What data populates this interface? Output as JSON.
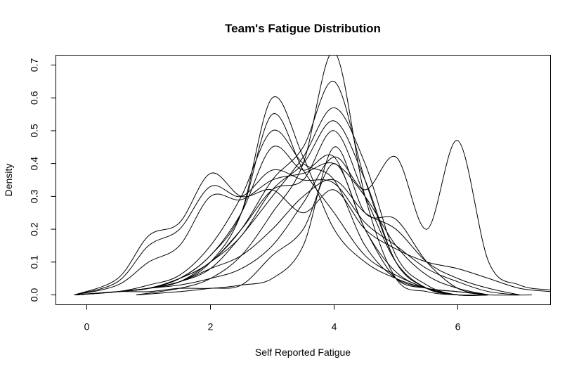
{
  "chart_data": {
    "type": "line",
    "title": "Team's Fatigue Distribution",
    "xlabel": "Self Reported Fatigue",
    "ylabel": "Density",
    "xlim": [
      -0.5,
      7.5
    ],
    "ylim": [
      -0.03,
      0.73
    ],
    "x_ticks": [
      0,
      2,
      4,
      6
    ],
    "x_tick_labels": [
      "0",
      "2",
      "4",
      "6"
    ],
    "y_ticks": [
      0.0,
      0.1,
      0.2,
      0.3,
      0.4,
      0.5,
      0.6,
      0.7
    ],
    "y_tick_labels": [
      "0.0",
      "0.1",
      "0.2",
      "0.3",
      "0.4",
      "0.5",
      "0.6",
      "0.7"
    ],
    "grid": false,
    "legend": "none",
    "line_color": "#000000",
    "series": [
      {
        "x": [
          -0.2,
          0.5,
          1,
          1.5,
          2,
          2.5,
          3,
          3.5,
          4,
          4.5,
          5,
          5.5,
          6,
          6.5,
          7,
          7.5
        ],
        "y": [
          0.0,
          0.01,
          0.02,
          0.03,
          0.05,
          0.08,
          0.15,
          0.28,
          0.42,
          0.32,
          0.42,
          0.2,
          0.47,
          0.1,
          0.03,
          0.015
        ]
      },
      {
        "x": [
          -0.2,
          0.5,
          1,
          1.5,
          2,
          2.5,
          3,
          3.5,
          4,
          4.5,
          5,
          5.5,
          6,
          6.5,
          7,
          7.5
        ],
        "y": [
          0.0,
          0.05,
          0.18,
          0.22,
          0.37,
          0.3,
          0.32,
          0.25,
          0.32,
          0.2,
          0.14,
          0.1,
          0.08,
          0.05,
          0.02,
          0.01
        ]
      },
      {
        "x": [
          -0.2,
          0.5,
          1,
          1.5,
          2,
          2.5,
          3,
          3.5,
          4,
          4.5,
          5,
          5.5,
          6,
          6.5,
          7
        ],
        "y": [
          0.0,
          0.04,
          0.15,
          0.2,
          0.33,
          0.3,
          0.38,
          0.35,
          0.34,
          0.22,
          0.15,
          0.08,
          0.04,
          0.01,
          0.0
        ]
      },
      {
        "x": [
          -0.2,
          0.5,
          1,
          1.5,
          2,
          2.5,
          3,
          3.5,
          4,
          4.5,
          5,
          5.5,
          6,
          6.5
        ],
        "y": [
          0.0,
          0.03,
          0.1,
          0.15,
          0.3,
          0.29,
          0.35,
          0.37,
          0.4,
          0.3,
          0.15,
          0.06,
          0.02,
          0.0
        ]
      },
      {
        "x": [
          -0.2,
          0.5,
          1,
          1.5,
          2,
          2.5,
          3,
          3.5,
          4,
          4.5,
          5,
          5.5,
          6,
          6.5
        ],
        "y": [
          0.0,
          0.01,
          0.02,
          0.04,
          0.1,
          0.25,
          0.6,
          0.42,
          0.2,
          0.1,
          0.05,
          0.02,
          0.01,
          0.0
        ]
      },
      {
        "x": [
          -0.2,
          0.5,
          1,
          1.5,
          2,
          2.5,
          3,
          3.5,
          4,
          4.5,
          5,
          5.5,
          6,
          6.5
        ],
        "y": [
          0.0,
          0.01,
          0.02,
          0.05,
          0.12,
          0.25,
          0.55,
          0.38,
          0.25,
          0.12,
          0.06,
          0.02,
          0.0,
          0.0
        ]
      },
      {
        "x": [
          -0.2,
          0.5,
          1,
          1.5,
          2,
          2.5,
          3,
          3.5,
          4,
          4.5,
          5,
          5.5,
          6,
          6.5
        ],
        "y": [
          0.0,
          0.01,
          0.03,
          0.06,
          0.15,
          0.3,
          0.5,
          0.4,
          0.35,
          0.15,
          0.05,
          0.02,
          0.0,
          0.0
        ]
      },
      {
        "x": [
          -0.2,
          0.5,
          1,
          1.5,
          2,
          2.5,
          3,
          3.5,
          4,
          4.5,
          5,
          5.5,
          6,
          6.5
        ],
        "y": [
          0.0,
          0.01,
          0.02,
          0.05,
          0.12,
          0.25,
          0.45,
          0.38,
          0.42,
          0.2,
          0.07,
          0.02,
          0.0,
          0.0
        ]
      },
      {
        "x": [
          0.8,
          1.5,
          2,
          2.5,
          3,
          3.5,
          4,
          4.5,
          5,
          5.5,
          6,
          6.5
        ],
        "y": [
          0.0,
          0.02,
          0.05,
          0.12,
          0.25,
          0.4,
          0.74,
          0.3,
          0.05,
          0.01,
          0.0,
          0.0
        ]
      },
      {
        "x": [
          -0.2,
          0.5,
          1,
          1.5,
          2,
          2.5,
          3,
          3.5,
          4,
          4.5,
          5,
          5.5,
          6,
          6.5
        ],
        "y": [
          0.0,
          0.01,
          0.02,
          0.05,
          0.1,
          0.2,
          0.35,
          0.45,
          0.65,
          0.35,
          0.1,
          0.02,
          0.0,
          0.0
        ]
      },
      {
        "x": [
          -0.2,
          0.5,
          1,
          1.5,
          2,
          2.5,
          3,
          3.5,
          4,
          4.5,
          5,
          5.5,
          6,
          6.5
        ],
        "y": [
          0.0,
          0.01,
          0.02,
          0.04,
          0.08,
          0.18,
          0.3,
          0.42,
          0.57,
          0.4,
          0.12,
          0.03,
          0.0,
          0.0
        ]
      },
      {
        "x": [
          -0.2,
          0.5,
          1,
          1.5,
          2,
          2.5,
          3,
          3.5,
          4,
          4.5,
          5,
          5.5,
          6,
          6.5
        ],
        "y": [
          0.0,
          0.01,
          0.02,
          0.04,
          0.1,
          0.18,
          0.32,
          0.4,
          0.53,
          0.35,
          0.1,
          0.02,
          0.0,
          0.0
        ]
      },
      {
        "x": [
          -0.2,
          0.5,
          1,
          1.5,
          2,
          2.5,
          3,
          3.5,
          4,
          4.5,
          5,
          5.5,
          6,
          6.5
        ],
        "y": [
          0.0,
          0.01,
          0.02,
          0.05,
          0.1,
          0.2,
          0.32,
          0.35,
          0.5,
          0.3,
          0.1,
          0.02,
          0.0,
          0.0
        ]
      },
      {
        "x": [
          -0.2,
          0.5,
          1,
          1.5,
          2,
          2.5,
          3,
          3.5,
          4,
          4.5,
          5,
          5.5,
          6,
          6.5
        ],
        "y": [
          0.0,
          0.01,
          0.01,
          0.02,
          0.02,
          0.03,
          0.05,
          0.15,
          0.45,
          0.25,
          0.23,
          0.1,
          0.02,
          0.0
        ]
      },
      {
        "x": [
          -0.2,
          0.5,
          1,
          1.5,
          2,
          2.5,
          3,
          3.5,
          4,
          4.5,
          5,
          5.5,
          6,
          6.5,
          7
        ],
        "y": [
          0.0,
          0.01,
          0.02,
          0.04,
          0.08,
          0.12,
          0.2,
          0.3,
          0.35,
          0.25,
          0.2,
          0.1,
          0.05,
          0.02,
          0.0
        ]
      },
      {
        "x": [
          0.8,
          1.5,
          2,
          2.5,
          3,
          3.5,
          4,
          4.5,
          5,
          5.5,
          6,
          6.5,
          7.2
        ],
        "y": [
          0.0,
          0.01,
          0.02,
          0.03,
          0.12,
          0.2,
          0.4,
          0.2,
          0.05,
          0.02,
          0.01,
          0.0,
          0.0
        ]
      }
    ]
  }
}
